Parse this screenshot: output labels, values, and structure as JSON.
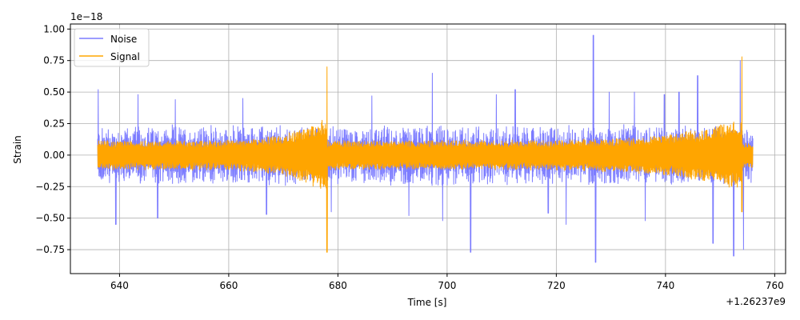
{
  "chart_data": {
    "type": "line",
    "xlabel": "Time [s]",
    "ylabel": "Strain",
    "x_offset_label": "+1.26237e9",
    "y_scale_label": "1e−18",
    "xlim": [
      631,
      762
    ],
    "ylim": [
      -0.94,
      1.04
    ],
    "xticks": [
      640,
      660,
      680,
      700,
      720,
      740,
      760
    ],
    "yticks": [
      -0.75,
      -0.5,
      -0.25,
      0.0,
      0.25,
      0.5,
      0.75,
      1.0
    ],
    "xtick_labels": [
      "640",
      "660",
      "680",
      "700",
      "720",
      "740",
      "760"
    ],
    "ytick_labels": [
      "−0.75",
      "−0.50",
      "−0.25",
      "0.00",
      "0.25",
      "0.50",
      "0.75",
      "1.00"
    ],
    "grid": true,
    "legend_position": "top-left",
    "series": [
      {
        "name": "Noise",
        "color": "#7b7bff",
        "x_range": [
          636,
          756
        ],
        "typical_amplitude": 0.22,
        "spikes": [
          {
            "x": 636.1,
            "y": 0.52
          },
          {
            "x": 639.3,
            "y": -0.55
          },
          {
            "x": 643.4,
            "y": 0.48
          },
          {
            "x": 647.0,
            "y": -0.5
          },
          {
            "x": 650.2,
            "y": 0.44
          },
          {
            "x": 662.6,
            "y": 0.45
          },
          {
            "x": 666.9,
            "y": -0.47
          },
          {
            "x": 678.8,
            "y": -0.45
          },
          {
            "x": 686.2,
            "y": 0.47
          },
          {
            "x": 693.0,
            "y": -0.48
          },
          {
            "x": 697.3,
            "y": 0.65
          },
          {
            "x": 699.2,
            "y": -0.52
          },
          {
            "x": 704.3,
            "y": -0.77
          },
          {
            "x": 709.0,
            "y": 0.48
          },
          {
            "x": 712.5,
            "y": 0.52
          },
          {
            "x": 718.5,
            "y": -0.46
          },
          {
            "x": 721.8,
            "y": -0.55
          },
          {
            "x": 726.8,
            "y": 0.95
          },
          {
            "x": 727.2,
            "y": -0.85
          },
          {
            "x": 729.7,
            "y": 0.5
          },
          {
            "x": 734.3,
            "y": 0.5
          },
          {
            "x": 736.3,
            "y": -0.52
          },
          {
            "x": 739.8,
            "y": 0.48
          },
          {
            "x": 742.5,
            "y": 0.5
          },
          {
            "x": 745.9,
            "y": 0.63
          },
          {
            "x": 748.7,
            "y": -0.7
          },
          {
            "x": 752.5,
            "y": -0.8
          },
          {
            "x": 753.7,
            "y": 0.75
          },
          {
            "x": 754.3,
            "y": -0.75
          }
        ]
      },
      {
        "name": "Signal",
        "color": "#ffa500",
        "x_range": [
          636,
          756
        ],
        "typical_amplitude": 0.11,
        "chirps": [
          {
            "start": 636,
            "peak": 678,
            "peak_amplitude": 0.3,
            "spike_high": 0.7,
            "spike_low": -0.77
          },
          {
            "start": 678.2,
            "peak": 754,
            "peak_amplitude": 0.28,
            "spike_high": 0.78,
            "spike_low": -0.45
          }
        ]
      }
    ]
  }
}
